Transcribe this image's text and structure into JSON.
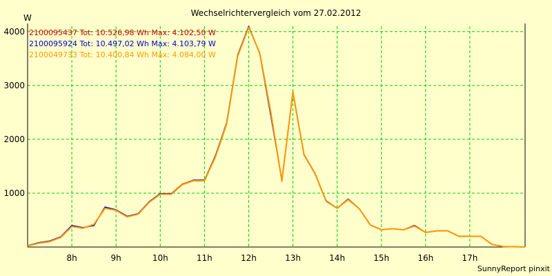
{
  "title": "Wechselrichtervergleich vom 27.02.2012",
  "footer": "SunnyReport pinxit",
  "colors": {
    "background": "#ffffcc",
    "grid": "#00cc00",
    "axis": "#000000"
  },
  "chart_data": {
    "type": "line",
    "title": "Wechselrichtervergleich vom 27.02.2012",
    "xlabel": "",
    "ylabel": "W",
    "xlim": [
      7.0,
      18.25
    ],
    "ylim": [
      0,
      4100
    ],
    "yticks": [
      1000,
      2000,
      3000,
      4000
    ],
    "xticks": [
      {
        "value": 8,
        "label": "8h"
      },
      {
        "value": 9,
        "label": "9h"
      },
      {
        "value": 10,
        "label": "10h"
      },
      {
        "value": 11,
        "label": "11h"
      },
      {
        "value": 12,
        "label": "12h"
      },
      {
        "value": 13,
        "label": "13h"
      },
      {
        "value": 14,
        "label": "14h"
      },
      {
        "value": 15,
        "label": "15h"
      },
      {
        "value": 16,
        "label": "16h"
      },
      {
        "value": 17,
        "label": "17h"
      }
    ],
    "grid": true,
    "legend_position": "top-left",
    "series": [
      {
        "name": "2100095437 Tot: 10.526,98 Wh Max: 4.102,50 W",
        "color": "#cc0000",
        "x": [
          7.0,
          7.25,
          7.5,
          7.75,
          8.0,
          8.25,
          8.5,
          8.75,
          9.0,
          9.25,
          9.5,
          9.75,
          10.0,
          10.25,
          10.5,
          10.75,
          11.0,
          11.25,
          11.5,
          11.75,
          12.0,
          12.25,
          12.5,
          12.75,
          13.0,
          13.25,
          13.5,
          13.75,
          14.0,
          14.25,
          14.5,
          14.75,
          15.0,
          15.25,
          15.5,
          15.75,
          16.0,
          16.25,
          16.5,
          16.75,
          17.0,
          17.25,
          17.5,
          17.75,
          18.0,
          18.25
        ],
        "values": [
          25,
          80,
          110,
          190,
          395,
          350,
          410,
          740,
          690,
          570,
          610,
          840,
          990,
          990,
          1170,
          1240,
          1240,
          1700,
          2300,
          3550,
          4090,
          3600,
          2500,
          1220,
          2880,
          1720,
          1370,
          850,
          720,
          890,
          710,
          410,
          320,
          340,
          320,
          400,
          270,
          300,
          300,
          200,
          200,
          200,
          50,
          10,
          5,
          0
        ]
      },
      {
        "name": "2100095924 Tot: 10.497,02 Wh Max: 4.103,79 W",
        "color": "#0000cc",
        "x": [
          7.0,
          7.25,
          7.5,
          7.75,
          8.0,
          8.25,
          8.5,
          8.75,
          9.0,
          9.25,
          9.5,
          9.75,
          10.0,
          10.25,
          10.5,
          10.75,
          11.0,
          11.25,
          11.5,
          11.75,
          12.0,
          12.25,
          12.5,
          12.75,
          13.0,
          13.25,
          13.5,
          13.75,
          14.0,
          14.25,
          14.5,
          14.75,
          15.0,
          15.25,
          15.5,
          15.75,
          16.0,
          16.25,
          16.5,
          16.75,
          17.0,
          17.25,
          17.5,
          17.75,
          18.0,
          18.25
        ],
        "values": [
          25,
          80,
          110,
          190,
          400,
          360,
          400,
          740,
          690,
          570,
          620,
          840,
          990,
          990,
          1160,
          1240,
          1240,
          1700,
          2300,
          3560,
          4100,
          3590,
          2440,
          1240,
          2870,
          1710,
          1360,
          860,
          720,
          890,
          710,
          410,
          320,
          340,
          320,
          400,
          270,
          300,
          300,
          200,
          200,
          200,
          50,
          10,
          5,
          0
        ]
      },
      {
        "name": "2100049733 Tot: 10.400,84 Wh Max: 4.084,00 W",
        "color": "#ff9900",
        "x": [
          7.0,
          7.25,
          7.5,
          7.75,
          8.0,
          8.25,
          8.5,
          8.75,
          9.0,
          9.25,
          9.5,
          9.75,
          10.0,
          10.25,
          10.5,
          10.75,
          11.0,
          11.25,
          11.5,
          11.75,
          12.0,
          12.25,
          12.5,
          12.75,
          13.0,
          13.25,
          13.5,
          13.75,
          14.0,
          14.25,
          14.5,
          14.75,
          15.0,
          15.25,
          15.5,
          15.75,
          16.0,
          16.25,
          16.5,
          16.75,
          17.0,
          17.25,
          17.5,
          17.75,
          18.0,
          18.25
        ],
        "values": [
          20,
          70,
          100,
          180,
          380,
          350,
          420,
          720,
          680,
          560,
          610,
          830,
          980,
          980,
          1160,
          1230,
          1230,
          1680,
          2280,
          3540,
          4080,
          3600,
          2500,
          1230,
          2870,
          1720,
          1360,
          850,
          720,
          880,
          710,
          410,
          320,
          340,
          320,
          390,
          270,
          300,
          300,
          200,
          200,
          200,
          50,
          10,
          5,
          0
        ]
      }
    ]
  }
}
